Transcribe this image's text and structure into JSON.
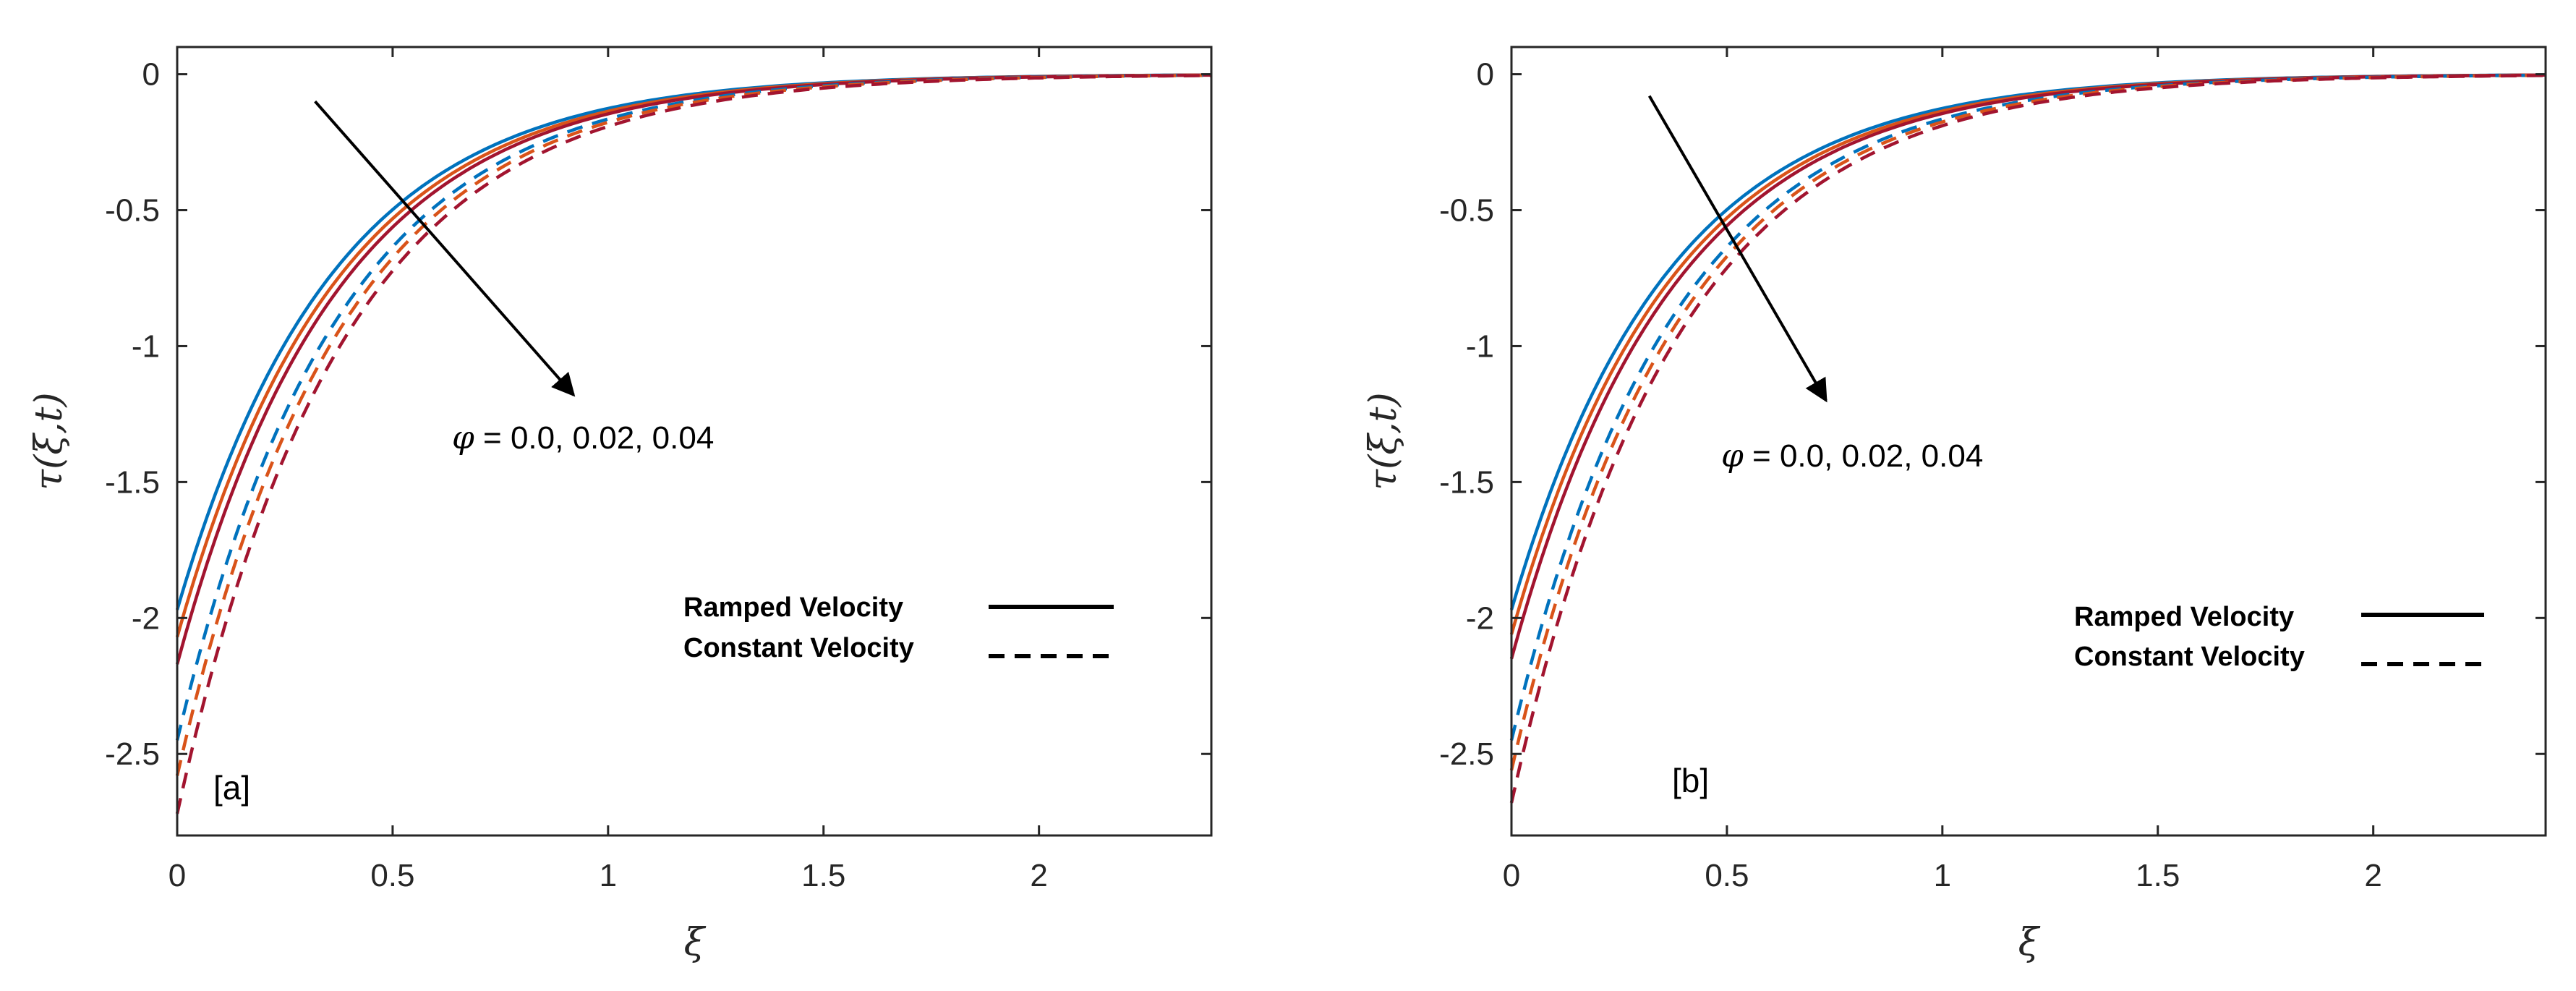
{
  "chart_data": [
    {
      "type": "line",
      "panel_label": "[a]",
      "xlabel": "ξ",
      "ylabel": "τ(ξ,t)",
      "xlim": [
        0,
        2.4
      ],
      "ylim": [
        -2.8,
        0.1
      ],
      "xticks": [
        0,
        0.5,
        1,
        1.5,
        2
      ],
      "xtick_labels": [
        "0",
        "0.5",
        "1",
        "1.5",
        "2"
      ],
      "yticks": [
        0,
        -0.5,
        -1,
        -1.5,
        -2,
        -2.5
      ],
      "ytick_labels": [
        "0",
        "-0.5",
        "-1",
        "-1.5",
        "-2",
        "-2.5"
      ],
      "annotation": {
        "symbol": "φ",
        "text": " = 0.0, 0.02, 0.04",
        "arrow_from": [
          0.32,
          -0.1
        ],
        "arrow_to": [
          0.92,
          -1.18
        ]
      },
      "legend": [
        {
          "label": "Ramped Velocity",
          "style": "solid"
        },
        {
          "label": "Constant Velocity",
          "style": "dashed"
        }
      ],
      "series": [
        {
          "name": "Ramped φ=0.0",
          "style": "solid",
          "color": "#0072BD",
          "y0": -1.97,
          "k": 2.75
        },
        {
          "name": "Ramped φ=0.02",
          "style": "solid",
          "color": "#D95319",
          "y0": -2.07,
          "k": 2.72
        },
        {
          "name": "Ramped φ=0.04",
          "style": "solid",
          "color": "#A2142F",
          "y0": -2.17,
          "k": 2.7
        },
        {
          "name": "Constant φ=0.0",
          "style": "dashed",
          "color": "#0072BD",
          "y0": -2.45,
          "k": 2.7
        },
        {
          "name": "Constant φ=0.02",
          "style": "dashed",
          "color": "#D95319",
          "y0": -2.58,
          "k": 2.68
        },
        {
          "name": "Constant φ=0.04",
          "style": "dashed",
          "color": "#A2142F",
          "y0": -2.72,
          "k": 2.65
        }
      ]
    },
    {
      "type": "line",
      "panel_label": "[b]",
      "xlabel": "ξ",
      "ylabel": "τ(ξ,t)",
      "xlim": [
        0,
        2.4
      ],
      "ylim": [
        -2.8,
        0.1
      ],
      "xticks": [
        0,
        0.5,
        1,
        1.5,
        2
      ],
      "xtick_labels": [
        "0",
        "0.5",
        "1",
        "1.5",
        "2"
      ],
      "yticks": [
        0,
        -0.5,
        -1,
        -1.5,
        -2,
        -2.5
      ],
      "ytick_labels": [
        "0",
        "-0.5",
        "-1",
        "-1.5",
        "-2",
        "-2.5"
      ],
      "annotation": {
        "symbol": "φ",
        "text": " = 0.0, 0.02, 0.04",
        "arrow_from": [
          0.32,
          -0.08
        ],
        "arrow_to": [
          0.73,
          -1.2
        ]
      },
      "legend": [
        {
          "label": "Ramped Velocity",
          "style": "solid"
        },
        {
          "label": "Constant Velocity",
          "style": "dashed"
        }
      ],
      "series": [
        {
          "name": "Ramped φ=0.0",
          "style": "solid",
          "color": "#0072BD",
          "y0": -1.97,
          "k": 2.75
        },
        {
          "name": "Ramped φ=0.02",
          "style": "solid",
          "color": "#D95319",
          "y0": -2.06,
          "k": 2.72
        },
        {
          "name": "Ramped φ=0.04",
          "style": "solid",
          "color": "#A2142F",
          "y0": -2.15,
          "k": 2.7
        },
        {
          "name": "Constant φ=0.0",
          "style": "dashed",
          "color": "#0072BD",
          "y0": -2.45,
          "k": 2.7
        },
        {
          "name": "Constant φ=0.02",
          "style": "dashed",
          "color": "#D95319",
          "y0": -2.56,
          "k": 2.68
        },
        {
          "name": "Constant φ=0.04",
          "style": "dashed",
          "color": "#A2142F",
          "y0": -2.68,
          "k": 2.65
        }
      ]
    }
  ]
}
